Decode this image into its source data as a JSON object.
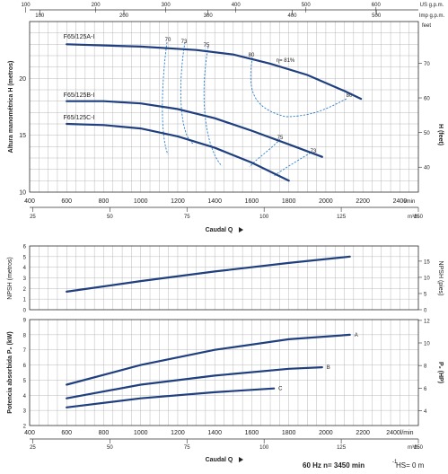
{
  "footer": {
    "speed": "60 Hz  n= 3450 min",
    "speed_sup": "-1",
    "hs": "HS= 0 m"
  },
  "axes": {
    "top1": {
      "label": "US g.p.m.",
      "ticks": [
        "100",
        "200",
        "300",
        "400",
        "500",
        "600"
      ]
    },
    "top2": {
      "label": "Imp g.p.m.",
      "ticks": [
        "100",
        "200",
        "300",
        "400",
        "500"
      ]
    },
    "top_unit": "feet",
    "flow_lpm": {
      "label": "l/min",
      "ticks": [
        "400",
        "600",
        "800",
        "1000",
        "1200",
        "1400",
        "1600",
        "1800",
        "2000",
        "2200",
        "2400"
      ]
    },
    "flow_m3h": {
      "label": "m³/h",
      "ticks": [
        "25",
        "50",
        "75",
        "100",
        "125",
        "150"
      ]
    },
    "caudal": "Caudal  Q",
    "bottom_flow_lpm": {
      "ticks": [
        "400",
        "600",
        "800",
        "1000",
        "1200",
        "1400",
        "1600",
        "1800",
        "2000",
        "2200",
        "2400"
      ],
      "last_unit": "l/min"
    },
    "bottom_flow_m3h": {
      "ticks": [
        "25",
        "50",
        "75",
        "100",
        "125",
        "150"
      ]
    }
  },
  "chart_data": [
    {
      "type": "line",
      "xlabel": "Caudal  Q",
      "ylabel": "Altura manométrica H (metros)",
      "ylabel_right": "H (feet)",
      "xlim": [
        400,
        2500
      ],
      "ylim": [
        10,
        25
      ],
      "yticks": [
        "10",
        "15",
        "20"
      ],
      "yticks_right": [
        "40",
        "50",
        "60",
        "70"
      ],
      "series": [
        {
          "name": "F65/125A-I",
          "x": [
            600,
            1000,
            1300,
            1500,
            1700,
            1900,
            2100,
            2190
          ],
          "y": [
            23.0,
            22.8,
            22.5,
            22.1,
            21.3,
            20.3,
            18.9,
            18.2
          ]
        },
        {
          "name": "F65/125B-I",
          "x": [
            600,
            800,
            1000,
            1200,
            1400,
            1600,
            1800,
            1980
          ],
          "y": [
            18.0,
            18.0,
            17.8,
            17.3,
            16.5,
            15.4,
            14.2,
            13.1
          ]
        },
        {
          "name": "F65/125C-I",
          "x": [
            600,
            800,
            1000,
            1200,
            1400,
            1600,
            1800
          ],
          "y": [
            16.0,
            15.9,
            15.6,
            14.9,
            13.9,
            12.6,
            11.0
          ]
        }
      ],
      "efficiency_labels": [
        "70",
        "73",
        "75",
        "80",
        "η= 81%",
        "80",
        "75",
        "73"
      ]
    },
    {
      "type": "line",
      "ylabel": "NPSH  (metros)",
      "ylabel_right": "NPSH  (pies)",
      "xlim": [
        400,
        2500
      ],
      "ylim": [
        0,
        6
      ],
      "yticks": [
        "0",
        "1",
        "2",
        "3",
        "4",
        "5",
        "6"
      ],
      "yticks_right": [
        "0",
        "5",
        "10",
        "15"
      ],
      "series": [
        {
          "x": [
            600,
            1000,
            1400,
            1800,
            2130
          ],
          "y": [
            1.7,
            2.7,
            3.6,
            4.4,
            5.0
          ]
        }
      ]
    },
    {
      "type": "line",
      "ylabel": "Potencia absorbida  P₂ (kW)",
      "ylabel_right": "P₂  (HP)",
      "xlabel": "Caudal  Q",
      "xlim": [
        400,
        2500
      ],
      "ylim": [
        2,
        9
      ],
      "yticks": [
        "2",
        "3",
        "4",
        "5",
        "6",
        "7",
        "8",
        "9"
      ],
      "yticks_right": [
        "4",
        "6",
        "8",
        "10",
        "12"
      ],
      "series": [
        {
          "name": "A",
          "x": [
            600,
            1000,
            1400,
            1800,
            2130
          ],
          "y": [
            4.7,
            6.0,
            7.0,
            7.7,
            8.0
          ]
        },
        {
          "name": "B",
          "x": [
            600,
            1000,
            1400,
            1800,
            1980
          ],
          "y": [
            3.8,
            4.7,
            5.3,
            5.75,
            5.85
          ]
        },
        {
          "name": "C",
          "x": [
            600,
            1000,
            1400,
            1720
          ],
          "y": [
            3.2,
            3.8,
            4.2,
            4.45
          ]
        }
      ]
    }
  ]
}
